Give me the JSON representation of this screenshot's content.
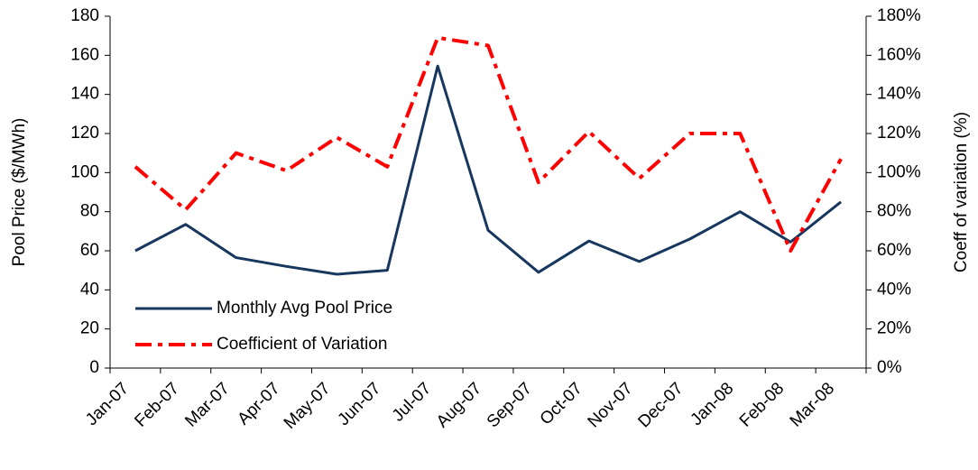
{
  "chart_data": {
    "type": "line",
    "categories": [
      "Jan-07",
      "Feb-07",
      "Mar-07",
      "Apr-07",
      "May-07",
      "Jun-07",
      "Jul-07",
      "Aug-07",
      "Sep-07",
      "Oct-07",
      "Nov-07",
      "Dec-07",
      "Jan-08",
      "Feb-08",
      "Mar-08"
    ],
    "series": [
      {
        "name": "Monthly Avg Pool Price",
        "color": "#17375e",
        "values": [
          60,
          73.5,
          56.5,
          52,
          48,
          50,
          154.5,
          70.5,
          49,
          65,
          54.5,
          66,
          80,
          64.5,
          85
        ]
      },
      {
        "name": "Coefficient of Variation",
        "color": "#ff0000",
        "axis": "y2",
        "values": [
          103,
          81,
          110,
          101,
          118,
          103,
          169,
          165,
          95,
          121,
          97,
          120,
          120,
          60,
          107
        ]
      }
    ],
    "ylabel": "Pool Price ($/MWh)",
    "y2label": "Coeff of variation (%)",
    "ylim": [
      0,
      180
    ],
    "yticks": [
      0,
      20,
      40,
      60,
      80,
      100,
      120,
      140,
      160,
      180
    ],
    "y2lim": [
      0,
      180
    ],
    "y2ticks": [
      {
        "value": 0,
        "label": "0%"
      },
      {
        "value": 20,
        "label": "20%"
      },
      {
        "value": 40,
        "label": "40%"
      },
      {
        "value": 60,
        "label": "60%"
      },
      {
        "value": 80,
        "label": "80%"
      },
      {
        "value": 100,
        "label": "100%"
      },
      {
        "value": 120,
        "label": "120%"
      },
      {
        "value": 140,
        "label": "140%"
      },
      {
        "value": 160,
        "label": "160%"
      },
      {
        "value": 180,
        "label": "180%"
      }
    ],
    "grid": false,
    "legend": "lower left"
  }
}
